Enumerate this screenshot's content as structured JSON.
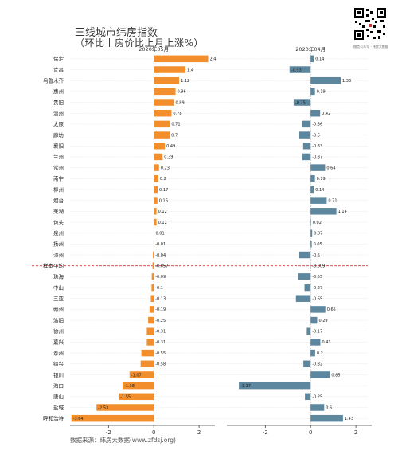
{
  "title_line1": "三线城市纬房指数",
  "title_line2": "（环比丨房价比上月上涨%）",
  "source": "数据来源：纬房大数据(www.zfdsj.org)",
  "qr_caption": "微信公众号 · 纬房大数据",
  "chart_data": {
    "type": "bar",
    "orientation": "horizontal",
    "categories": [
      "保定",
      "宜昌",
      "乌鲁木齐",
      "惠州",
      "贵阳",
      "温州",
      "太原",
      "廊坊",
      "襄阳",
      "兰州",
      "常州",
      "南宁",
      "柳州",
      "烟台",
      "芜湖",
      "包头",
      "泉州",
      "扬州",
      "漳州",
      "样本平均",
      "珠海",
      "中山",
      "三亚",
      "赣州",
      "洛阳",
      "徐州",
      "嘉兴",
      "泰州",
      "绍兴",
      "银川",
      "海口",
      "唐山",
      "盐城",
      "呼和浩特"
    ],
    "reference_category": "样本平均",
    "panels": [
      {
        "title": "2020年05月",
        "color": "#F28E2B",
        "values": [
          2.4,
          1.4,
          1.12,
          0.96,
          0.89,
          0.78,
          0.71,
          0.7,
          0.49,
          0.39,
          0.23,
          0.2,
          0.17,
          0.16,
          0.12,
          0.12,
          0.01,
          -0.01,
          -0.04,
          -0.057,
          -0.09,
          -0.1,
          -0.13,
          -0.19,
          -0.25,
          -0.31,
          -0.31,
          -0.55,
          -0.58,
          -1.07,
          -1.38,
          -1.55,
          -2.53,
          -3.64
        ],
        "value_labels": [
          "2.4",
          "1.4",
          "1.12",
          "0.96",
          "0.89",
          "0.78",
          "0.71",
          "0.7",
          "0.49",
          "0.39",
          "0.23",
          "0.2",
          "0.17",
          "0.16",
          "0.12",
          "0.12",
          "0.01",
          "-0.01",
          "-0.04",
          "-0.057",
          "-0.09",
          "-0.1",
          "-0.13",
          "-0.19",
          "-0.25",
          "-0.31",
          "-0.31",
          "-0.55",
          "-0.58",
          "-1.07",
          "-1.38",
          "-1.55",
          "-2.53",
          "-3.64"
        ],
        "xlim": [
          -3.7,
          2.7
        ],
        "xticks": [
          -2,
          0,
          2
        ]
      },
      {
        "title": "2020年04月",
        "color": "#5C879F",
        "values": [
          0.14,
          -0.93,
          1.33,
          0.19,
          -0.75,
          0.42,
          -0.36,
          -0.5,
          -0.33,
          -0.37,
          0.64,
          0.19,
          0.14,
          0.71,
          1.14,
          0.02,
          0.07,
          0.05,
          -0.5,
          -0.009,
          -0.55,
          -0.27,
          -0.65,
          0.65,
          0.29,
          -0.17,
          0.43,
          0.2,
          -0.32,
          0.85,
          -3.17,
          -0.25,
          0.6,
          1.43
        ],
        "value_labels": [
          "0.14",
          "-0.93",
          "1.33",
          "0.19",
          "-0.75",
          "0.42",
          "-0.36",
          "-0.5",
          "-0.33",
          "-0.37",
          "0.64",
          "0.19",
          "0.14",
          "0.71",
          "1.14",
          "0.02",
          "0.07",
          "0.05",
          "-0.5",
          "-0.009",
          "-0.55",
          "-0.27",
          "-0.65",
          "0.65",
          "0.29",
          "-0.17",
          "0.43",
          "0.2",
          "-0.32",
          "0.85",
          "-3.17",
          "-0.25",
          "0.6",
          "1.43"
        ],
        "xlim": [
          -3.7,
          2.7
        ],
        "xticks": [
          -2,
          0,
          2
        ]
      }
    ]
  }
}
